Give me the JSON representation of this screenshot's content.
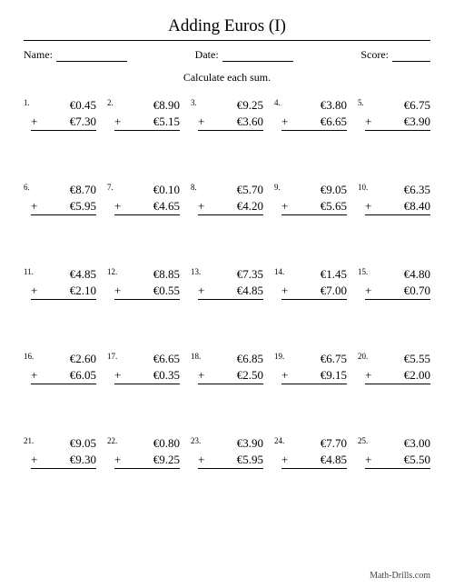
{
  "title": "Adding Euros (I)",
  "meta": {
    "name_label": "Name:",
    "date_label": "Date:",
    "score_label": "Score:"
  },
  "instruction": "Calculate each sum.",
  "plus": "+",
  "footer": "Math-Drills.com",
  "colors": {
    "text": "#000000",
    "background": "#ffffff",
    "rule": "#000000"
  },
  "problems": [
    {
      "n": "1.",
      "a": "€0.45",
      "b": "€7.30"
    },
    {
      "n": "2.",
      "a": "€8.90",
      "b": "€5.15"
    },
    {
      "n": "3.",
      "a": "€9.25",
      "b": "€3.60"
    },
    {
      "n": "4.",
      "a": "€3.80",
      "b": "€6.65"
    },
    {
      "n": "5.",
      "a": "€6.75",
      "b": "€3.90"
    },
    {
      "n": "6.",
      "a": "€8.70",
      "b": "€5.95"
    },
    {
      "n": "7.",
      "a": "€0.10",
      "b": "€4.65"
    },
    {
      "n": "8.",
      "a": "€5.70",
      "b": "€4.20"
    },
    {
      "n": "9.",
      "a": "€9.05",
      "b": "€5.65"
    },
    {
      "n": "10.",
      "a": "€6.35",
      "b": "€8.40"
    },
    {
      "n": "11.",
      "a": "€4.85",
      "b": "€2.10"
    },
    {
      "n": "12.",
      "a": "€8.85",
      "b": "€0.55"
    },
    {
      "n": "13.",
      "a": "€7.35",
      "b": "€4.85"
    },
    {
      "n": "14.",
      "a": "€1.45",
      "b": "€7.00"
    },
    {
      "n": "15.",
      "a": "€4.80",
      "b": "€0.70"
    },
    {
      "n": "16.",
      "a": "€2.60",
      "b": "€6.05"
    },
    {
      "n": "17.",
      "a": "€6.65",
      "b": "€0.35"
    },
    {
      "n": "18.",
      "a": "€6.85",
      "b": "€2.50"
    },
    {
      "n": "19.",
      "a": "€6.75",
      "b": "€9.15"
    },
    {
      "n": "20.",
      "a": "€5.55",
      "b": "€2.00"
    },
    {
      "n": "21.",
      "a": "€9.05",
      "b": "€9.30"
    },
    {
      "n": "22.",
      "a": "€0.80",
      "b": "€9.25"
    },
    {
      "n": "23.",
      "a": "€3.90",
      "b": "€5.95"
    },
    {
      "n": "24.",
      "a": "€7.70",
      "b": "€4.85"
    },
    {
      "n": "25.",
      "a": "€3.00",
      "b": "€5.50"
    }
  ]
}
